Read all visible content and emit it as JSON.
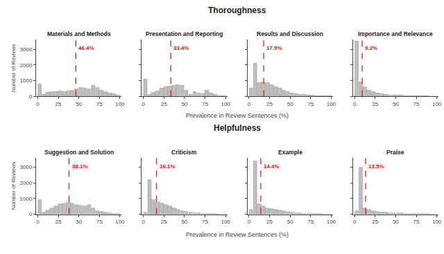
{
  "chart_data": [
    {
      "type": "bar",
      "title": "Thoroughness",
      "xlabel": "Prevalence in Review Sentences (%)",
      "ylabel": "Number of Reviews",
      "bins": [
        0,
        5,
        10,
        15,
        20,
        25,
        30,
        35,
        40,
        45,
        50,
        55,
        60,
        65,
        70,
        75,
        80,
        85,
        90,
        95,
        100
      ],
      "color": "#bebebe",
      "xlim": [
        -2,
        102
      ],
      "ylim": [
        0,
        3600
      ],
      "xticks": [
        0,
        25,
        50,
        75,
        100
      ],
      "yticks": [
        0,
        1000,
        2000,
        3000
      ],
      "grid": false,
      "series": [
        {
          "name": "Materials and Methods",
          "values": [
            800,
            100,
            250,
            300,
            300,
            350,
            300,
            350,
            400,
            450,
            550,
            500,
            450,
            700,
            550,
            400,
            300,
            200,
            150,
            80
          ],
          "mean": {
            "value": 46.4,
            "label": "46.4%",
            "color": "red",
            "line_style": "dashed"
          }
        },
        {
          "name": "Presentation and Reporting",
          "values": [
            1100,
            100,
            250,
            350,
            500,
            600,
            650,
            700,
            750,
            700,
            400,
            100,
            300,
            200,
            150,
            400,
            200,
            100,
            50,
            30
          ],
          "mean": {
            "value": 33.4,
            "label": "33.4%",
            "color": "red",
            "line_style": "dashed"
          }
        },
        {
          "name": "Results and Discussion",
          "values": [
            500,
            2100,
            850,
            900,
            850,
            750,
            600,
            500,
            400,
            300,
            200,
            150,
            100,
            100,
            80,
            60,
            40,
            30,
            20,
            10
          ],
          "mean": {
            "value": 17.9,
            "label": "17.9%",
            "color": "red",
            "line_style": "dashed"
          }
        },
        {
          "name": "Importance and Relevance",
          "values": [
            3500,
            900,
            600,
            400,
            300,
            200,
            150,
            100,
            80,
            80,
            80,
            60,
            50,
            40,
            30,
            20,
            10,
            10,
            5,
            5
          ],
          "mean": {
            "value": 9.2,
            "label": "9.2%",
            "color": "red",
            "line_style": "dashed"
          }
        }
      ]
    },
    {
      "type": "bar",
      "title": "Helpfulness",
      "xlabel": "Prevalence in Review Sentences (%)",
      "ylabel": "Number of Reviews",
      "bins": [
        0,
        5,
        10,
        15,
        20,
        25,
        30,
        35,
        40,
        45,
        50,
        55,
        60,
        65,
        70,
        75,
        80,
        85,
        90,
        95,
        100
      ],
      "color": "#bebebe",
      "xlim": [
        -2,
        102
      ],
      "ylim": [
        0,
        3600
      ],
      "xticks": [
        0,
        25,
        50,
        75,
        100
      ],
      "yticks": [
        0,
        1000,
        2000,
        3000
      ],
      "grid": false,
      "series": [
        {
          "name": "Suggestion and Solution",
          "values": [
            900,
            100,
            250,
            400,
            500,
            650,
            700,
            800,
            700,
            600,
            550,
            500,
            600,
            400,
            200,
            150,
            100,
            80,
            50,
            30
          ],
          "mean": {
            "value": 38.1,
            "label": "38.1%",
            "color": "red",
            "line_style": "dashed"
          }
        },
        {
          "name": "Criticism",
          "values": [
            100,
            2200,
            900,
            800,
            700,
            600,
            500,
            400,
            300,
            200,
            150,
            100,
            80,
            60,
            40,
            30,
            20,
            10,
            5,
            5
          ],
          "mean": {
            "value": 16.1,
            "label": "16.1%",
            "color": "red",
            "line_style": "dashed"
          }
        },
        {
          "name": "Example",
          "values": [
            300,
            3400,
            650,
            500,
            400,
            350,
            300,
            250,
            200,
            150,
            100,
            80,
            60,
            50,
            40,
            30,
            20,
            10,
            5,
            5
          ],
          "mean": {
            "value": 14.4,
            "label": "14.4%",
            "color": "red",
            "line_style": "dashed"
          }
        },
        {
          "name": "Praise",
          "values": [
            200,
            3000,
            400,
            300,
            200,
            150,
            100,
            100,
            80,
            80,
            60,
            60,
            50,
            40,
            30,
            20,
            10,
            10,
            5,
            5
          ],
          "mean": {
            "value": 13.5,
            "label": "13.5%",
            "color": "red",
            "line_style": "dashed"
          }
        }
      ]
    }
  ]
}
